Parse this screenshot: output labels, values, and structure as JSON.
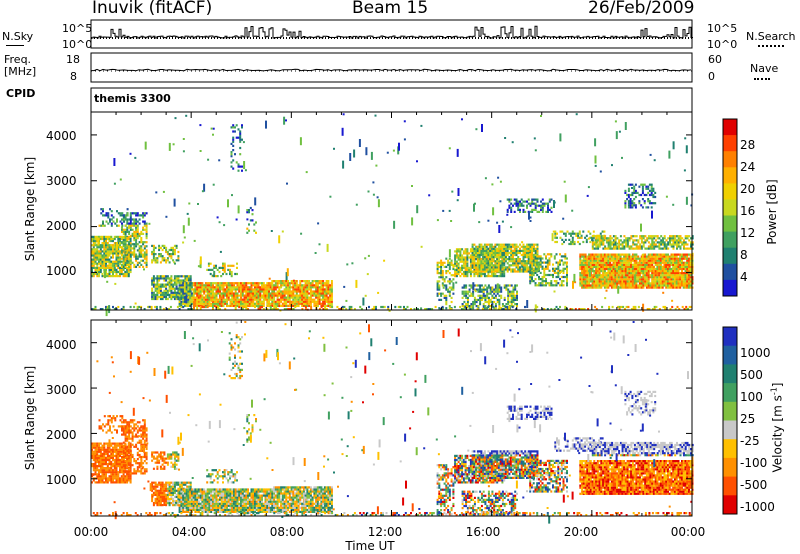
{
  "header": {
    "station": "Inuvik (fitACF)",
    "beam": "Beam 15",
    "date": "26/Feb/2009"
  },
  "top_panel": {
    "left_label": "N.Sky",
    "right_label": "N.Search",
    "left_ticks": [
      "10^5",
      "10^0"
    ],
    "right_ticks": [
      "10^5",
      "10^0"
    ]
  },
  "freq_panel": {
    "label_line1": "Freq.",
    "label_line2": "[MHz]",
    "left_ticks": [
      "18",
      "8"
    ],
    "right_ticks": [
      "60",
      "0"
    ],
    "right_label": "Nave"
  },
  "cpid": {
    "label": "CPID",
    "value": "themis 3300"
  },
  "colors": {
    "series_line": "#000000",
    "frame": "#000000"
  },
  "chart_data": [
    {
      "type": "heatmap",
      "title": "",
      "xlabel": "",
      "ylabel": "Slant Range [km]",
      "y_ticks": [
        "1000",
        "2000",
        "3000",
        "4000"
      ],
      "ylim": [
        180,
        4500
      ],
      "xlim_hours": [
        0,
        24
      ],
      "colorbar": {
        "label": "Power [dB]",
        "ticks": [
          "28",
          "24",
          "20",
          "16",
          "12",
          "8",
          "4"
        ],
        "colors": [
          "#e00000",
          "#ff4000",
          "#ff8000",
          "#ffb000",
          "#f0d000",
          "#c8d820",
          "#70c040",
          "#40a060",
          "#208070",
          "#2050a0",
          "#1818d0"
        ]
      }
    },
    {
      "type": "heatmap",
      "title": "",
      "xlabel": "Time UT",
      "ylabel": "Slant Range [km]",
      "y_ticks": [
        "1000",
        "2000",
        "3000",
        "4000"
      ],
      "x_ticks": [
        "00:00",
        "04:00",
        "08:00",
        "12:00",
        "16:00",
        "20:00",
        "00:00"
      ],
      "ylim": [
        180,
        4500
      ],
      "xlim_hours": [
        0,
        24
      ],
      "colorbar": {
        "label": "Velocity [m s",
        "label_sup": "-1",
        "label_end": "]",
        "ticks": [
          "1000",
          "500",
          "100",
          "25",
          "-25",
          "-100",
          "-500",
          "-1000"
        ],
        "colors": [
          "#2030c0",
          "#2060a0",
          "#208070",
          "#40a060",
          "#80c040",
          "#c8c8c8",
          "#ffc000",
          "#ff9000",
          "#ff5000",
          "#e00000"
        ]
      }
    }
  ]
}
